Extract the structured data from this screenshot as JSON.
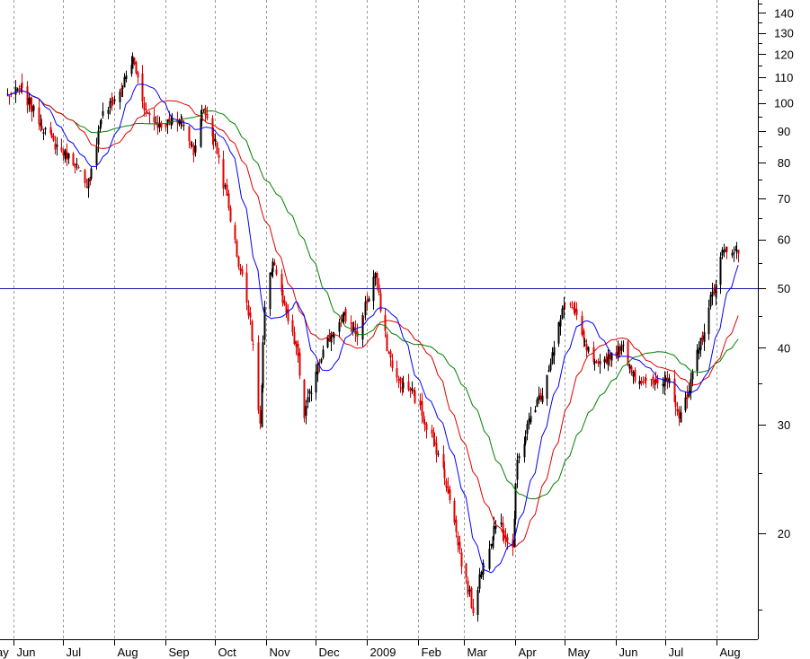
{
  "chart_data": {
    "type": "candlestick",
    "title": "",
    "xlabel": "",
    "ylabel": "",
    "y_scale": "log",
    "ylim": [
      14.0,
      145.0
    ],
    "y_ticks": [
      20,
      30,
      40,
      50,
      60,
      70,
      80,
      90,
      100,
      110,
      120,
      130,
      140
    ],
    "y_tick_labels": [
      "20",
      "30",
      "40",
      "50",
      "60",
      "70",
      "80",
      "90",
      "100",
      "110",
      "120",
      "130",
      "140"
    ],
    "x_tick_labels": [
      "ay",
      "Jun",
      "Jul",
      "Aug",
      "Sep",
      "Oct",
      "Nov",
      "Dec",
      "2009",
      "Feb",
      "Mar",
      "Apr",
      "May",
      "Jun",
      "Jul",
      "Aug"
    ],
    "grid": {
      "vertical": "dashed",
      "horizontal": false
    },
    "reference_line": {
      "value": 50,
      "color": "#1a1aa8"
    },
    "colors": {
      "up": "#000000",
      "down": "#e00000",
      "ma_fast": "#0000ff",
      "ma_mid": "#e00000",
      "ma_slow": "#008000"
    },
    "price_anchors": [
      [
        "2008-05-28",
        103
      ],
      [
        "2008-06-05",
        105
      ],
      [
        "2008-06-15",
        95
      ],
      [
        "2008-06-25",
        86
      ],
      [
        "2008-07-08",
        80
      ],
      [
        "2008-07-15",
        72
      ],
      [
        "2008-07-24",
        95
      ],
      [
        "2008-08-05",
        105
      ],
      [
        "2008-08-12",
        118
      ],
      [
        "2008-08-20",
        97
      ],
      [
        "2008-08-28",
        92
      ],
      [
        "2008-09-10",
        94
      ],
      [
        "2008-09-18",
        84
      ],
      [
        "2008-09-24",
        98
      ],
      [
        "2008-10-01",
        86
      ],
      [
        "2008-10-08",
        70
      ],
      [
        "2008-10-15",
        55
      ],
      [
        "2008-10-22",
        45
      ],
      [
        "2008-10-28",
        30
      ],
      [
        "2008-10-31",
        46
      ],
      [
        "2008-11-05",
        56
      ],
      [
        "2008-11-12",
        46
      ],
      [
        "2008-11-19",
        40
      ],
      [
        "2008-11-24",
        31
      ],
      [
        "2008-12-02",
        38
      ],
      [
        "2008-12-10",
        42
      ],
      [
        "2008-12-18",
        45
      ],
      [
        "2008-12-26",
        42
      ],
      [
        "2009-01-06",
        53
      ],
      [
        "2009-01-09",
        46
      ],
      [
        "2009-01-14",
        39
      ],
      [
        "2009-01-20",
        35
      ],
      [
        "2009-01-28",
        34
      ],
      [
        "2009-02-06",
        30
      ],
      [
        "2009-02-13",
        27
      ],
      [
        "2009-02-20",
        23
      ],
      [
        "2009-02-27",
        18
      ],
      [
        "2009-03-06",
        15
      ],
      [
        "2009-03-10",
        17
      ],
      [
        "2009-03-20",
        21
      ],
      [
        "2009-03-30",
        19
      ],
      [
        "2009-04-02",
        26
      ],
      [
        "2009-04-10",
        31
      ],
      [
        "2009-04-17",
        34
      ],
      [
        "2009-04-24",
        40
      ],
      [
        "2009-05-01",
        48
      ],
      [
        "2009-05-06",
        46
      ],
      [
        "2009-05-12",
        41
      ],
      [
        "2009-05-20",
        37
      ],
      [
        "2009-05-28",
        39
      ],
      [
        "2009-06-05",
        40
      ],
      [
        "2009-06-12",
        36
      ],
      [
        "2009-06-19",
        35
      ],
      [
        "2009-06-26",
        35
      ],
      [
        "2009-07-03",
        36
      ],
      [
        "2009-07-09",
        31
      ],
      [
        "2009-07-14",
        33
      ],
      [
        "2009-07-22",
        41
      ],
      [
        "2009-07-29",
        49
      ],
      [
        "2009-08-04",
        57
      ],
      [
        "2009-08-10",
        58
      ],
      [
        "2009-08-14",
        57
      ]
    ]
  }
}
